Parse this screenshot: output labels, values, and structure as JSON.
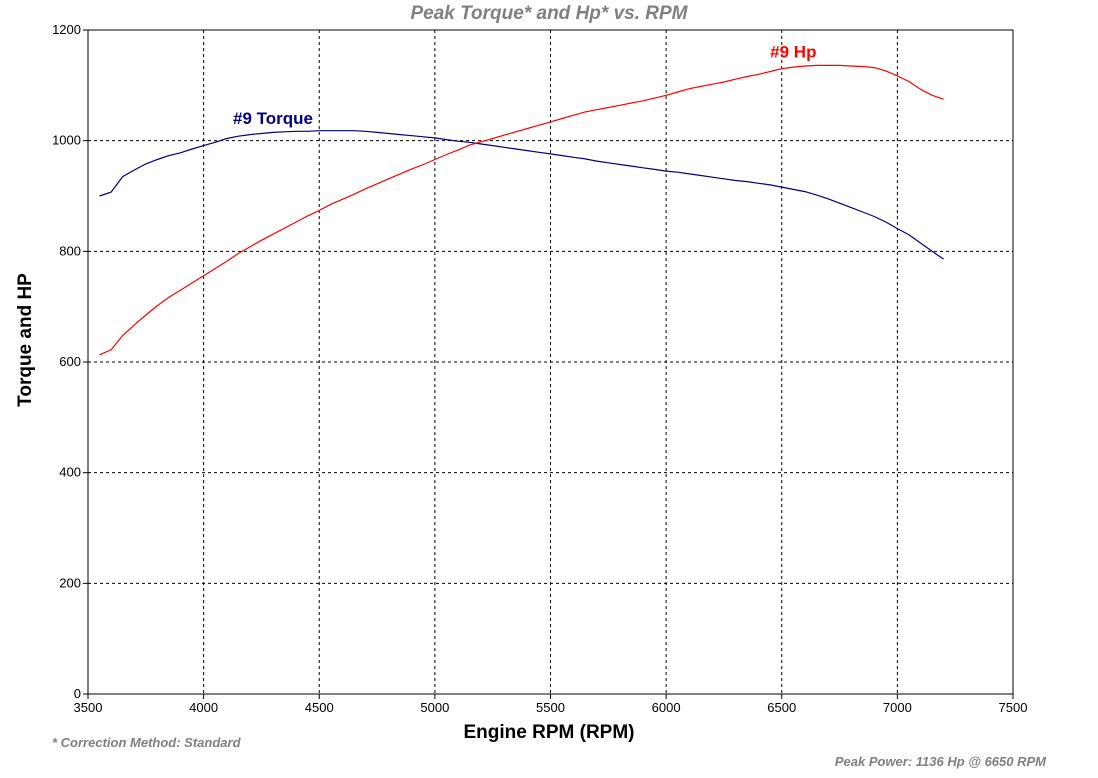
{
  "chart_data": {
    "type": "line",
    "title": "Peak Torque* and Hp* vs. RPM",
    "xlabel": "Engine RPM (RPM)",
    "ylabel": "Torque and HP",
    "xlim": [
      3500,
      7500
    ],
    "ylim": [
      0,
      1200
    ],
    "x_ticks": [
      3500,
      4000,
      4500,
      5000,
      5500,
      6000,
      6500,
      7000,
      7500
    ],
    "y_ticks": [
      0,
      200,
      400,
      600,
      800,
      1000,
      1200
    ],
    "grid": true,
    "series": [
      {
        "name": "#9 Torque",
        "color": "#000080",
        "x": [
          3550,
          3600,
          3650,
          3700,
          3750,
          3800,
          3850,
          3900,
          3950,
          4000,
          4050,
          4100,
          4150,
          4200,
          4250,
          4300,
          4350,
          4400,
          4450,
          4500,
          4550,
          4600,
          4650,
          4700,
          4750,
          4800,
          4850,
          4900,
          4950,
          5000,
          5050,
          5100,
          5150,
          5200,
          5250,
          5300,
          5350,
          5400,
          5450,
          5500,
          5550,
          5600,
          5650,
          5700,
          5750,
          5800,
          5850,
          5900,
          5950,
          6000,
          6050,
          6100,
          6150,
          6200,
          6250,
          6300,
          6350,
          6400,
          6450,
          6500,
          6550,
          6600,
          6650,
          6700,
          6750,
          6800,
          6850,
          6900,
          6950,
          7000,
          7050,
          7100,
          7150,
          7200
        ],
        "values": [
          900,
          907,
          935,
          947,
          958,
          966,
          973,
          978,
          985,
          991,
          997,
          1004,
          1008,
          1011,
          1013,
          1015,
          1016,
          1017,
          1017,
          1018,
          1018,
          1018,
          1018,
          1017,
          1015,
          1013,
          1011,
          1009,
          1007,
          1005,
          1002,
          999,
          997,
          994,
          991,
          988,
          985,
          982,
          979,
          976,
          973,
          970,
          967,
          963,
          960,
          957,
          954,
          951,
          948,
          945,
          943,
          940,
          937,
          934,
          931,
          928,
          926,
          923,
          920,
          916,
          912,
          908,
          902,
          895,
          887,
          879,
          871,
          863,
          853,
          841,
          830,
          815,
          800,
          786
        ]
      },
      {
        "name": "#9 Hp",
        "color": "#ff0000",
        "x": [
          3550,
          3600,
          3650,
          3700,
          3750,
          3800,
          3850,
          3900,
          3950,
          4000,
          4050,
          4100,
          4150,
          4200,
          4250,
          4300,
          4350,
          4400,
          4450,
          4500,
          4550,
          4600,
          4650,
          4700,
          4750,
          4800,
          4850,
          4900,
          4950,
          5000,
          5050,
          5100,
          5150,
          5200,
          5250,
          5300,
          5350,
          5400,
          5450,
          5500,
          5550,
          5600,
          5650,
          5700,
          5750,
          5800,
          5850,
          5900,
          5950,
          6000,
          6050,
          6100,
          6150,
          6200,
          6250,
          6300,
          6350,
          6400,
          6450,
          6500,
          6550,
          6600,
          6650,
          6700,
          6750,
          6800,
          6850,
          6900,
          6950,
          7000,
          7050,
          7100,
          7150,
          7200
        ],
        "values": [
          613,
          622,
          648,
          667,
          685,
          702,
          717,
          730,
          743,
          756,
          769,
          782,
          796,
          808,
          820,
          831,
          842,
          853,
          864,
          874,
          885,
          894,
          903,
          913,
          922,
          931,
          940,
          949,
          957,
          966,
          975,
          983,
          992,
          998,
          1004,
          1010,
          1016,
          1022,
          1028,
          1034,
          1040,
          1046,
          1052,
          1056,
          1060,
          1064,
          1068,
          1072,
          1077,
          1082,
          1088,
          1094,
          1098,
          1102,
          1106,
          1111,
          1116,
          1120,
          1125,
          1130,
          1133,
          1135,
          1136,
          1136,
          1136,
          1135,
          1134,
          1132,
          1126,
          1117,
          1107,
          1093,
          1082,
          1075
        ]
      }
    ],
    "series_labels": [
      {
        "text": "#9 Torque",
        "color": "#000080",
        "x": 4300,
        "y": 1030
      },
      {
        "text": "#9 Hp",
        "color": "#ff0000",
        "x": 6550,
        "y": 1150
      }
    ],
    "footnote": "* Correction Method: Standard",
    "peak_power_text": "Peak Power: 1136 Hp @ 6650 RPM"
  }
}
